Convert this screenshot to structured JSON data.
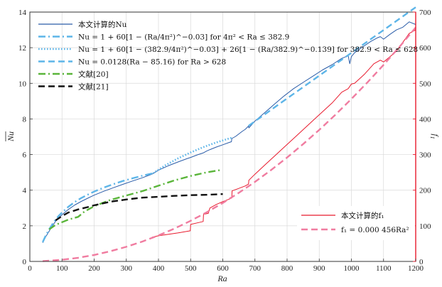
{
  "chart_data": {
    "type": "line",
    "title": "",
    "xlabel": "Ra",
    "ylabel_left": "Nu",
    "ylabel_right": "f",
    "ylabel_right_sub": "1",
    "xlim": [
      0,
      1200
    ],
    "ylim_left": [
      0,
      14
    ],
    "ylim_right": [
      0,
      700
    ],
    "x_ticks": [
      0,
      100,
      200,
      300,
      400,
      500,
      600,
      700,
      800,
      900,
      1000,
      1100,
      1200
    ],
    "y_left_ticks": [
      0,
      2,
      4,
      6,
      8,
      10,
      12,
      14
    ],
    "y_right_ticks": [
      0,
      100,
      200,
      300,
      400,
      500,
      600,
      700
    ],
    "grid": true,
    "legend_top": [
      {
        "text": "本文计算的Nu",
        "color": "#2a5ca8",
        "style": "solid"
      },
      {
        "text": "Nu = 1 + 60[1 − (Ra/4π²)^−0.03] for 4π² < Ra ≤ 382.9",
        "color": "#5db5e8",
        "style": "dashdot"
      },
      {
        "text": "Nu = 1 + 60[1 − (382.9/4π²)^−0.03] + 26[1 − (Ra/382.9)^−0.139] for 382.9 < Ra ≤ 628",
        "color": "#5db5e8",
        "style": "dotted"
      },
      {
        "text": "Nu = 0.0128(Ra − 85.16) for Ra > 628",
        "color": "#5db5e8",
        "style": "dashed"
      },
      {
        "text": "文献[20]",
        "color": "#5ab53a",
        "style": "dashdot"
      },
      {
        "text": "文献[21]",
        "color": "#111111",
        "style": "dashed"
      }
    ],
    "legend_bottom": [
      {
        "text": "本文计算的f₁",
        "color": "#e8192c",
        "style": "solid"
      },
      {
        "text": "f₁ = 0.000 456Ra²",
        "color": "#f07ca0",
        "style": "dashed"
      }
    ],
    "series": [
      {
        "axis": "left",
        "color": "#2a5ca8",
        "style": "solid",
        "x": [
          40,
          50,
          60,
          70,
          80,
          90,
          100,
          120,
          140,
          160,
          180,
          200,
          230,
          260,
          290,
          320,
          350,
          380,
          382,
          400,
          430,
          460,
          490,
          500,
          520,
          540,
          550,
          560,
          580,
          600,
          620,
          627,
          628,
          640,
          660,
          670,
          680,
          681,
          700,
          730,
          760,
          790,
          820,
          850,
          880,
          910,
          940,
          970,
          990,
          995,
          1000,
          1010,
          1030,
          1060,
          1080,
          1090,
          1100,
          1120,
          1140,
          1160,
          1180,
          1200
        ],
        "y": [
          1.05,
          1.4,
          1.7,
          2.0,
          2.25,
          2.45,
          2.62,
          2.92,
          3.17,
          3.37,
          3.55,
          3.72,
          3.94,
          4.14,
          4.33,
          4.52,
          4.7,
          4.9,
          4.92,
          5.12,
          5.37,
          5.58,
          5.78,
          5.84,
          5.98,
          6.1,
          6.2,
          6.28,
          6.42,
          6.55,
          6.68,
          6.72,
          6.9,
          7.02,
          7.3,
          7.42,
          7.6,
          7.5,
          7.88,
          8.35,
          8.82,
          9.28,
          9.7,
          10.05,
          10.4,
          10.75,
          11.05,
          11.4,
          11.55,
          11.1,
          11.5,
          11.72,
          11.98,
          12.35,
          12.55,
          12.62,
          12.48,
          12.75,
          13.0,
          13.15,
          13.45,
          13.3
        ]
      },
      {
        "axis": "left",
        "color": "#5db5e8",
        "style": "dashdot",
        "x": [
          40,
          50,
          60,
          70,
          80,
          90,
          100,
          120,
          140,
          160,
          180,
          200,
          230,
          260,
          290,
          320,
          350,
          382.9
        ],
        "y": [
          1.08,
          1.47,
          1.8,
          2.09,
          2.34,
          2.56,
          2.75,
          3.07,
          3.34,
          3.56,
          3.75,
          3.92,
          4.15,
          4.34,
          4.52,
          4.67,
          4.81,
          4.95
        ]
      },
      {
        "axis": "left",
        "color": "#5db5e8",
        "style": "dotted",
        "x": [
          382.9,
          420,
          460,
          500,
          540,
          580,
          628
        ],
        "y": [
          4.95,
          5.38,
          5.78,
          6.12,
          6.42,
          6.68,
          6.95
        ]
      },
      {
        "axis": "left",
        "color": "#5db5e8",
        "style": "dashed",
        "x": [
          680,
          700,
          800,
          900,
          1000,
          1100,
          1200
        ],
        "y": [
          7.61,
          7.87,
          9.15,
          10.43,
          11.71,
          12.99,
          14.27
        ]
      },
      {
        "axis": "left",
        "color": "#5ab53a",
        "style": "dashdot",
        "x": [
          60,
          80,
          100,
          120,
          150,
          170,
          200,
          250,
          300,
          350,
          400,
          450,
          500,
          550,
          590
        ],
        "y": [
          1.8,
          2.05,
          2.2,
          2.35,
          2.5,
          2.8,
          3.1,
          3.45,
          3.7,
          3.95,
          4.25,
          4.55,
          4.8,
          5.0,
          5.12
        ]
      },
      {
        "axis": "left",
        "color": "#111111",
        "style": "dashed",
        "x": [
          80,
          100,
          120,
          150,
          180,
          200,
          250,
          300,
          350,
          400,
          450,
          500,
          550,
          600
        ],
        "y": [
          2.3,
          2.55,
          2.75,
          2.92,
          3.05,
          3.15,
          3.35,
          3.48,
          3.58,
          3.63,
          3.68,
          3.72,
          3.74,
          3.78
        ]
      },
      {
        "axis": "right",
        "color": "#e8192c",
        "style": "solid",
        "x": [
          380,
          400,
          430,
          460,
          499,
          500,
          520,
          539,
          540,
          555,
          560,
          580,
          600,
          620,
          628,
          629,
          650,
          670,
          680,
          681,
          700,
          730,
          760,
          790,
          820,
          850,
          880,
          910,
          940,
          970,
          990,
          1000,
          1010,
          1040,
          1070,
          1090,
          1100,
          1120,
          1140,
          1160,
          1180,
          1200
        ],
        "y": [
          68,
          72,
          76,
          80,
          86,
          104,
          108,
          112,
          132,
          135,
          150,
          160,
          168,
          175,
          178,
          198,
          205,
          212,
          217,
          228,
          245,
          270,
          295,
          320,
          345,
          370,
          395,
          420,
          445,
          475,
          485,
          498,
          500,
          525,
          555,
          565,
          560,
          575,
          590,
          615,
          640,
          650
        ]
      },
      {
        "axis": "right",
        "color": "#f07ca0",
        "style": "dashed",
        "x": [
          40,
          100,
          150,
          200,
          250,
          300,
          350,
          400,
          450,
          500,
          550,
          600,
          650,
          700,
          750,
          800,
          850,
          900,
          950,
          1000,
          1050,
          1100,
          1150,
          1200
        ],
        "y": [
          0.73,
          4.56,
          10.26,
          18.24,
          28.5,
          41.04,
          55.86,
          72.96,
          92.34,
          114,
          137.94,
          164.16,
          192.66,
          223.44,
          256.5,
          291.84,
          329.46,
          369.36,
          411.54,
          456,
          502.74,
          551.76,
          603.06,
          656.64
        ]
      }
    ]
  }
}
